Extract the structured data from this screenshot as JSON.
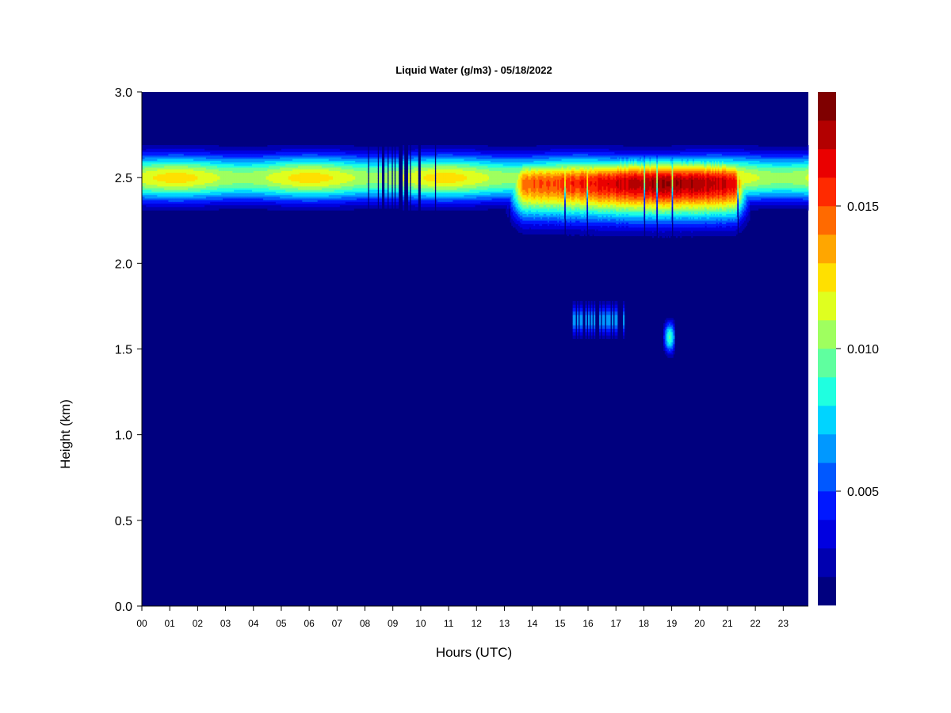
{
  "chart_data": {
    "type": "heatmap",
    "title": "Liquid Water (g/m3) - 05/18/2022",
    "xlabel": "Hours (UTC)",
    "ylabel": "Height (km)",
    "x_ticks": [
      "00",
      "01",
      "02",
      "03",
      "04",
      "05",
      "06",
      "07",
      "08",
      "09",
      "10",
      "11",
      "12",
      "13",
      "14",
      "15",
      "16",
      "17",
      "18",
      "19",
      "20",
      "21",
      "22",
      "23"
    ],
    "y_ticks": [
      "0.0",
      "0.5",
      "1.0",
      "1.5",
      "2.0",
      "2.5",
      "3.0"
    ],
    "xlim": [
      0,
      23.9
    ],
    "ylim": [
      0,
      3.0
    ],
    "colorbar": {
      "range": [
        0.001,
        0.019
      ],
      "ticks": [
        {
          "value": 0.005,
          "label": "0.005"
        },
        {
          "value": 0.01,
          "label": "0.010"
        },
        {
          "value": 0.015,
          "label": "0.015"
        }
      ],
      "colors": [
        "#00007f",
        "#0000b0",
        "#0000e0",
        "#0018ff",
        "#0058ff",
        "#0098ff",
        "#00d4ff",
        "#1fffe0",
        "#5fff9f",
        "#9fff5f",
        "#dfff1f",
        "#ffe000",
        "#ffa600",
        "#ff6a00",
        "#ff2a00",
        "#ea0000",
        "#b30000",
        "#7f0000"
      ]
    },
    "background_value": 0.0,
    "features": [
      {
        "name": "main cloud layer",
        "hours": [
          0,
          23.9
        ],
        "height_base_km": 2.25,
        "height_top_km": 2.72,
        "peak_height_km": 2.5,
        "peak_value": 0.0125
      },
      {
        "name": "thickened layer",
        "hours": [
          12.8,
          22.0
        ],
        "height_base_km": 2.05,
        "height_top_km": 2.75,
        "peak_height_km": 2.47,
        "peak_value": 0.0185
      },
      {
        "name": "streaks",
        "hours": [
          7.95,
          10.6
        ],
        "height_base_km": 2.27,
        "height_top_km": 2.72
      },
      {
        "name": "patches",
        "hours": [
          15.4,
          17.4
        ],
        "height_base_km": 1.55,
        "height_top_km": 1.78
      },
      {
        "name": "blob",
        "hours": [
          18.7,
          19.15
        ],
        "height_base_km": 1.43,
        "height_top_km": 1.68,
        "peak_value": 0.009
      }
    ]
  }
}
